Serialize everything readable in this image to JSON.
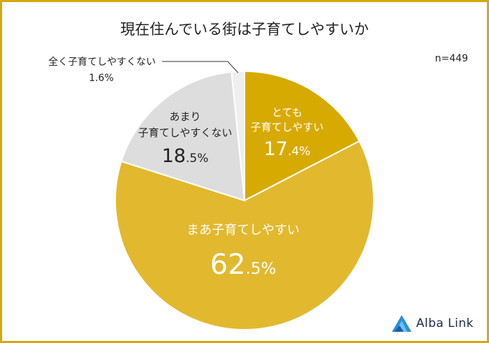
{
  "title": "現在住んでいる街は子育てしやすいか",
  "n_label": "n=449",
  "brand": "Alba Link",
  "colors": {
    "very_easy": "#d7aa02",
    "fairly_easy": "#e2b82e",
    "not_very_easy": "#dddddd",
    "not_easy_at_all": "#efefef",
    "frame": "#d4a90f",
    "logo_blue": "#2a8fd8"
  },
  "chart_data": {
    "type": "pie",
    "title": "現在住んでいる街は子育てしやすいか",
    "note": "n=449",
    "slices": [
      {
        "label": "とても子育てしやすい",
        "label_lines": [
          "とても",
          "子育てしやすい"
        ],
        "value": 17.4,
        "value_int": "17",
        "value_frac": ".4%"
      },
      {
        "label": "まあ子育てしやすい",
        "label_lines": [
          "まあ子育てしやすい"
        ],
        "value": 62.5,
        "value_int": "62",
        "value_frac": ".5%"
      },
      {
        "label": "あまり子育てしやすくない",
        "label_lines": [
          "あまり",
          "子育てしやすくない"
        ],
        "value": 18.5,
        "value_int": "18",
        "value_frac": ".5%"
      },
      {
        "label": "全く子育てしやすくない",
        "label_lines": [
          "全く子育てしやすくない"
        ],
        "value": 1.6,
        "value_text": "1.6%"
      }
    ],
    "start": "top",
    "direction": "clockwise"
  }
}
